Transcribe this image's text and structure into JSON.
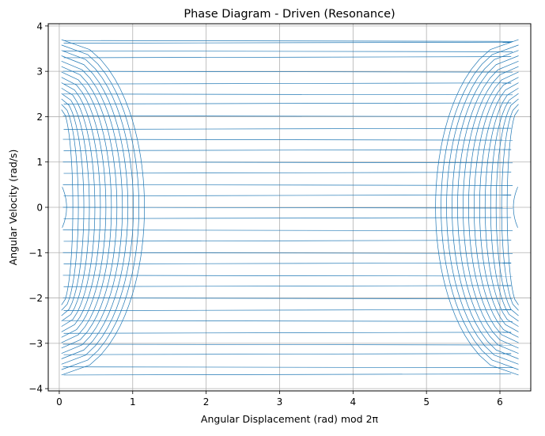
{
  "chart_data": {
    "type": "line",
    "title": "Phase Diagram - Driven (Resonance)",
    "xlabel": "Angular Displacement (rad) mod 2π",
    "ylabel": "Angular Velocity (rad/s)",
    "xlim": [
      -0.15,
      6.42
    ],
    "ylim": [
      -4.05,
      4.05
    ],
    "xticks": [
      0,
      1,
      2,
      3,
      4,
      5,
      6
    ],
    "yticks": [
      -4,
      -3,
      -2,
      -1,
      0,
      1,
      2,
      3,
      4
    ],
    "xtick_labels": [
      "0",
      "1",
      "2",
      "3",
      "4",
      "5",
      "6"
    ],
    "ytick_labels": [
      "−4",
      "−3",
      "−2",
      "−1",
      "0",
      "1",
      "2",
      "3",
      "4"
    ],
    "grid": true,
    "legend": "none",
    "series_color": "#1f77b4",
    "trajectory": {
      "description": "wrapped phase-space orbit of a driven pendulum at resonance; angle taken mod 2π so the curve is a family of nested arcs with horizontal wrap segments",
      "orbit_count": 14,
      "max_velocity": 3.7,
      "wrap_lines_y": [
        3.68,
        3.62,
        3.45,
        3.3,
        3.0,
        2.72,
        2.5,
        2.28,
        2.02,
        1.72,
        1.5,
        1.25,
        1.0,
        0.75,
        0.5,
        0.25,
        0.0,
        -0.25,
        -0.5,
        -0.75,
        -1.0,
        -1.25,
        -1.5,
        -1.75,
        -2.0,
        -2.28,
        -2.5,
        -2.78,
        -3.02,
        -3.25,
        -3.52,
        -3.7
      ]
    }
  }
}
